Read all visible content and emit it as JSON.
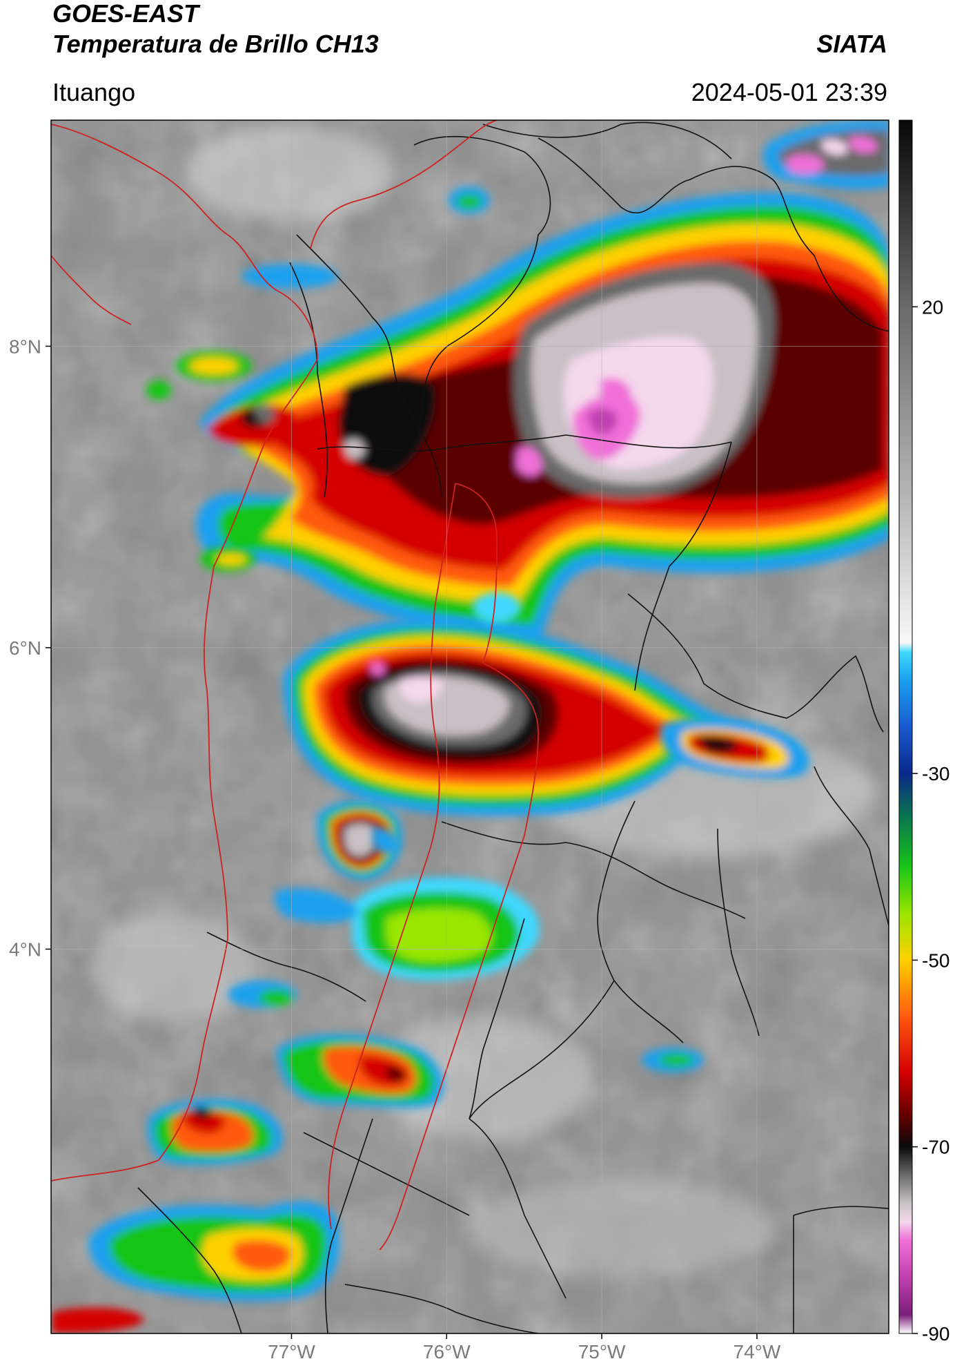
{
  "header": {
    "title_line1": "GOES-EAST",
    "title_line2": "Temperatura de Brillo CH13",
    "agency": "SIATA",
    "location": "Ituango",
    "datetime": "2024-05-01 23:39"
  },
  "map": {
    "lon_range": [
      -78.55,
      -73.15
    ],
    "lat_range": [
      1.45,
      9.5
    ],
    "lon_ticks": [
      {
        "value": -77,
        "label": "77°W"
      },
      {
        "value": -76,
        "label": "76°W"
      },
      {
        "value": -75,
        "label": "75°W"
      },
      {
        "value": -74,
        "label": "74°W"
      }
    ],
    "lat_ticks": [
      {
        "value": 8,
        "label": "8°N"
      },
      {
        "value": 6,
        "label": "6°N"
      },
      {
        "value": 4,
        "label": "4°N"
      }
    ],
    "grid": true
  },
  "colorbar": {
    "range": [
      -90,
      40
    ],
    "tick_labels": [
      {
        "value": 20,
        "label": "20"
      },
      {
        "value": -30,
        "label": "-30"
      },
      {
        "value": -50,
        "label": "-50"
      },
      {
        "value": -70,
        "label": "-70"
      },
      {
        "value": -90,
        "label": "-90"
      }
    ],
    "stops": [
      {
        "t": -90,
        "color": "#ffffff"
      },
      {
        "t": -88,
        "color": "#7b1f7b"
      },
      {
        "t": -84,
        "color": "#c040b0"
      },
      {
        "t": -80,
        "color": "#f070d8"
      },
      {
        "t": -78,
        "color": "#f4d8ec"
      },
      {
        "t": -76,
        "color": "#c8c0c4"
      },
      {
        "t": -73,
        "color": "#6a6a6a"
      },
      {
        "t": -70,
        "color": "#0a0a0a"
      },
      {
        "t": -67,
        "color": "#5a0000"
      },
      {
        "t": -62,
        "color": "#d40000"
      },
      {
        "t": -56,
        "color": "#ff5a10"
      },
      {
        "t": -50,
        "color": "#ffd000"
      },
      {
        "t": -45,
        "color": "#9ae600"
      },
      {
        "t": -40,
        "color": "#18c418"
      },
      {
        "t": -35,
        "color": "#0a7a4a"
      },
      {
        "t": -30,
        "color": "#0a2a8a"
      },
      {
        "t": -25,
        "color": "#1a5ad0"
      },
      {
        "t": -20,
        "color": "#1aa0ee"
      },
      {
        "t": -17,
        "color": "#40d8ff"
      },
      {
        "t": -16,
        "color": "#f8f8f8"
      },
      {
        "t": 0,
        "color": "#b4b4b4"
      },
      {
        "t": 20,
        "color": "#6a6a6a"
      },
      {
        "t": 40,
        "color": "#080808"
      }
    ]
  },
  "legend_colors": {
    "background_gray": "#8c8c8c",
    "department_border": "#cc2222",
    "country_border": "#111111"
  }
}
